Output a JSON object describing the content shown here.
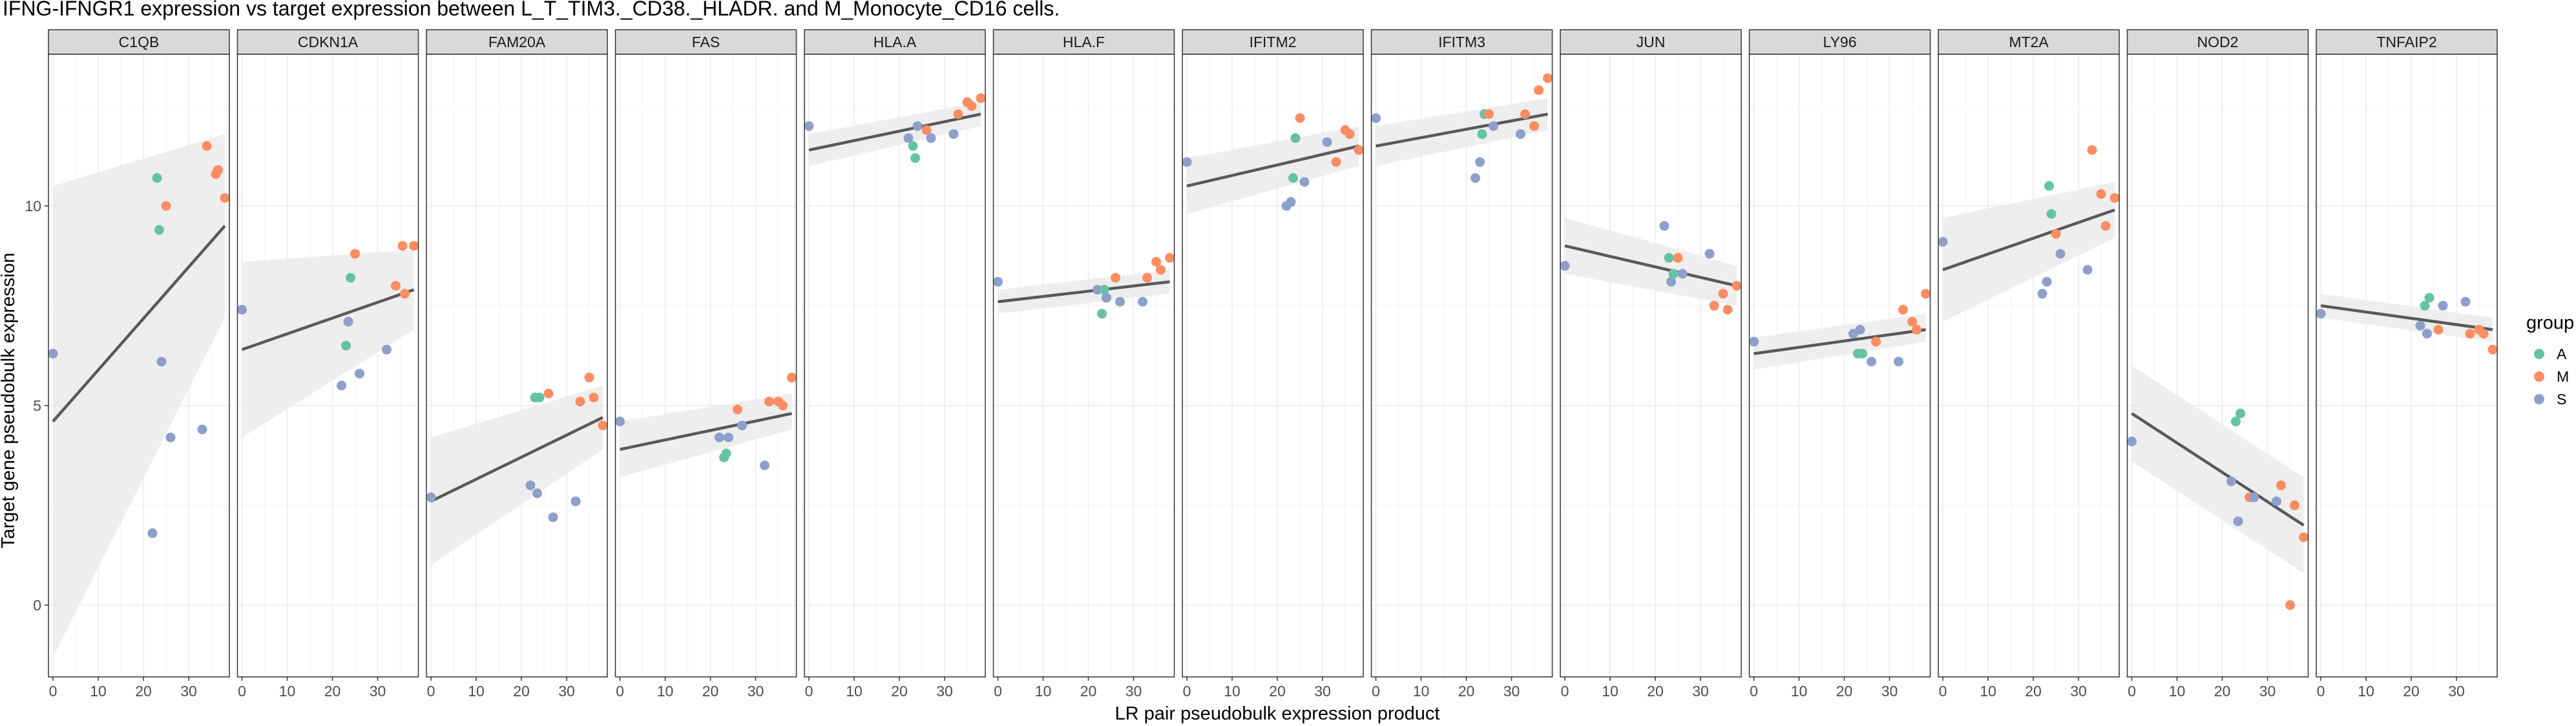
{
  "chart_data": {
    "type": "scatter",
    "title": "IFNG-IFNGR1 expression vs target expression between L_T_TIM3._CD38._HLADR. and M_Monocyte_CD16 cells.",
    "xlabel": "LR pair pseudobulk expression product",
    "ylabel": "Target gene pseudobulk expression",
    "xlim": [
      -1,
      39
    ],
    "ylim": [
      -1.8,
      13.8
    ],
    "x_ticks": [
      0,
      10,
      20,
      30
    ],
    "y_ticks": [
      0,
      5,
      10
    ],
    "grid": true,
    "legend": {
      "title": "group",
      "position": "right",
      "entries": [
        {
          "label": "A",
          "color": "#66c2a5"
        },
        {
          "label": "M",
          "color": "#fc8d62"
        },
        {
          "label": "S",
          "color": "#8da0cb"
        }
      ]
    },
    "fit_line_color": "#595959",
    "ci_band_color": "#ebebeb",
    "panels": [
      {
        "gene": "C1QB",
        "fit": [
          4.6,
          9.5
        ],
        "ci_low": [
          -1.3,
          7.2
        ],
        "ci_high": [
          10.5,
          11.8
        ],
        "points": [
          [
            0,
            6.3,
            "S"
          ],
          [
            22,
            1.8,
            "S"
          ],
          [
            23,
            10.7,
            "A"
          ],
          [
            23.5,
            9.4,
            "A"
          ],
          [
            24,
            6.1,
            "S"
          ],
          [
            25,
            10.0,
            "M"
          ],
          [
            26,
            4.2,
            "S"
          ],
          [
            33,
            4.4,
            "S"
          ],
          [
            34,
            11.5,
            "M"
          ],
          [
            36,
            10.8,
            "M"
          ],
          [
            36.5,
            10.9,
            "M"
          ],
          [
            38,
            10.2,
            "M"
          ]
        ]
      },
      {
        "gene": "CDKN1A",
        "fit": [
          6.4,
          7.9
        ],
        "ci_low": [
          4.2,
          6.9
        ],
        "ci_high": [
          8.6,
          8.9
        ],
        "points": [
          [
            0,
            7.4,
            "S"
          ],
          [
            22,
            5.5,
            "S"
          ],
          [
            23,
            6.5,
            "A"
          ],
          [
            23.5,
            7.1,
            "S"
          ],
          [
            24,
            8.2,
            "A"
          ],
          [
            25,
            8.8,
            "M"
          ],
          [
            26,
            5.8,
            "S"
          ],
          [
            32,
            6.4,
            "S"
          ],
          [
            34,
            8.0,
            "M"
          ],
          [
            35.5,
            9.0,
            "M"
          ],
          [
            36,
            7.8,
            "M"
          ],
          [
            38,
            9.0,
            "M"
          ]
        ]
      },
      {
        "gene": "FAM20A",
        "fit": [
          2.6,
          4.7
        ],
        "ci_low": [
          1.0,
          3.9
        ],
        "ci_high": [
          4.2,
          5.5
        ],
        "points": [
          [
            0,
            2.7,
            "S"
          ],
          [
            22,
            3.0,
            "S"
          ],
          [
            23,
            5.2,
            "A"
          ],
          [
            23.5,
            2.8,
            "S"
          ],
          [
            24,
            5.2,
            "A"
          ],
          [
            26,
            5.3,
            "M"
          ],
          [
            27,
            2.2,
            "S"
          ],
          [
            32,
            2.6,
            "S"
          ],
          [
            33,
            5.1,
            "M"
          ],
          [
            35,
            5.7,
            "M"
          ],
          [
            36,
            5.2,
            "M"
          ],
          [
            38,
            4.5,
            "M"
          ]
        ]
      },
      {
        "gene": "FAS",
        "fit": [
          3.9,
          4.8
        ],
        "ci_low": [
          3.2,
          4.4
        ],
        "ci_high": [
          4.6,
          5.3
        ],
        "points": [
          [
            0,
            4.6,
            "S"
          ],
          [
            22,
            4.2,
            "S"
          ],
          [
            23,
            3.7,
            "A"
          ],
          [
            23.5,
            3.8,
            "A"
          ],
          [
            24,
            4.2,
            "S"
          ],
          [
            26,
            4.9,
            "M"
          ],
          [
            27,
            4.5,
            "S"
          ],
          [
            32,
            3.5,
            "S"
          ],
          [
            33,
            5.1,
            "M"
          ],
          [
            35,
            5.1,
            "M"
          ],
          [
            36,
            5.0,
            "M"
          ],
          [
            38,
            5.7,
            "M"
          ]
        ]
      },
      {
        "gene": "HLA.A",
        "fit": [
          11.4,
          12.3
        ],
        "ci_low": [
          11.0,
          12.0
        ],
        "ci_high": [
          11.8,
          12.6
        ],
        "points": [
          [
            0,
            12.0,
            "S"
          ],
          [
            22,
            11.7,
            "S"
          ],
          [
            23,
            11.5,
            "A"
          ],
          [
            23.5,
            11.2,
            "A"
          ],
          [
            24,
            12.0,
            "S"
          ],
          [
            26,
            11.9,
            "M"
          ],
          [
            27,
            11.7,
            "S"
          ],
          [
            32,
            11.8,
            "S"
          ],
          [
            33,
            12.3,
            "M"
          ],
          [
            35,
            12.6,
            "M"
          ],
          [
            36,
            12.5,
            "M"
          ],
          [
            38,
            12.7,
            "M"
          ]
        ]
      },
      {
        "gene": "HLA.F",
        "fit": [
          7.6,
          8.1
        ],
        "ci_low": [
          7.3,
          7.8
        ],
        "ci_high": [
          7.9,
          8.4
        ],
        "points": [
          [
            0,
            8.1,
            "S"
          ],
          [
            22,
            7.9,
            "S"
          ],
          [
            23,
            7.3,
            "A"
          ],
          [
            23.5,
            7.9,
            "A"
          ],
          [
            24,
            7.7,
            "S"
          ],
          [
            26,
            8.2,
            "M"
          ],
          [
            27,
            7.6,
            "S"
          ],
          [
            32,
            7.6,
            "S"
          ],
          [
            33,
            8.2,
            "M"
          ],
          [
            35,
            8.6,
            "M"
          ],
          [
            36,
            8.4,
            "M"
          ],
          [
            38,
            8.7,
            "M"
          ]
        ]
      },
      {
        "gene": "IFITM2",
        "fit": [
          10.5,
          11.5
        ],
        "ci_low": [
          9.8,
          11.0
        ],
        "ci_high": [
          11.2,
          12.0
        ],
        "points": [
          [
            0,
            11.1,
            "S"
          ],
          [
            22,
            10.0,
            "S"
          ],
          [
            23,
            10.1,
            "S"
          ],
          [
            23.5,
            10.7,
            "A"
          ],
          [
            24,
            11.7,
            "A"
          ],
          [
            25,
            12.2,
            "M"
          ],
          [
            26,
            10.6,
            "S"
          ],
          [
            31,
            11.6,
            "S"
          ],
          [
            33,
            11.1,
            "M"
          ],
          [
            35,
            11.9,
            "M"
          ],
          [
            36,
            11.8,
            "M"
          ],
          [
            38,
            11.4,
            "M"
          ]
        ]
      },
      {
        "gene": "IFITM3",
        "fit": [
          11.5,
          12.3
        ],
        "ci_low": [
          11.0,
          11.9
        ],
        "ci_high": [
          12.0,
          12.7
        ],
        "points": [
          [
            0,
            12.2,
            "S"
          ],
          [
            22,
            10.7,
            "S"
          ],
          [
            23,
            11.1,
            "S"
          ],
          [
            23.5,
            11.8,
            "A"
          ],
          [
            24,
            12.3,
            "A"
          ],
          [
            25,
            12.3,
            "M"
          ],
          [
            26,
            12.0,
            "S"
          ],
          [
            32,
            11.8,
            "S"
          ],
          [
            33,
            12.3,
            "M"
          ],
          [
            35,
            12.0,
            "M"
          ],
          [
            36,
            12.9,
            "M"
          ],
          [
            38,
            13.2,
            "M"
          ]
        ]
      },
      {
        "gene": "JUN",
        "fit": [
          9.0,
          8.0
        ],
        "ci_low": [
          8.3,
          7.5
        ],
        "ci_high": [
          9.7,
          8.5
        ],
        "points": [
          [
            0,
            8.5,
            "S"
          ],
          [
            22,
            9.5,
            "S"
          ],
          [
            23,
            8.7,
            "A"
          ],
          [
            23.5,
            8.1,
            "S"
          ],
          [
            24,
            8.3,
            "A"
          ],
          [
            25,
            8.7,
            "M"
          ],
          [
            26,
            8.3,
            "S"
          ],
          [
            32,
            8.8,
            "S"
          ],
          [
            33,
            7.5,
            "M"
          ],
          [
            35,
            7.8,
            "M"
          ],
          [
            36,
            7.4,
            "M"
          ],
          [
            38,
            8.0,
            "M"
          ]
        ]
      },
      {
        "gene": "LY96",
        "fit": [
          6.3,
          6.9
        ],
        "ci_low": [
          5.9,
          6.6
        ],
        "ci_high": [
          6.7,
          7.3
        ],
        "points": [
          [
            0,
            6.6,
            "S"
          ],
          [
            22,
            6.8,
            "S"
          ],
          [
            23,
            6.3,
            "A"
          ],
          [
            23.5,
            6.9,
            "S"
          ],
          [
            24,
            6.3,
            "A"
          ],
          [
            26,
            6.1,
            "S"
          ],
          [
            27,
            6.6,
            "M"
          ],
          [
            32,
            6.1,
            "S"
          ],
          [
            33,
            7.4,
            "M"
          ],
          [
            35,
            7.1,
            "M"
          ],
          [
            36,
            6.9,
            "M"
          ],
          [
            38,
            7.8,
            "M"
          ]
        ]
      },
      {
        "gene": "MT2A",
        "fit": [
          8.4,
          9.9
        ],
        "ci_low": [
          7.1,
          9.2
        ],
        "ci_high": [
          9.7,
          10.6
        ],
        "points": [
          [
            0,
            9.1,
            "S"
          ],
          [
            22,
            7.8,
            "S"
          ],
          [
            23,
            8.1,
            "S"
          ],
          [
            23.5,
            10.5,
            "A"
          ],
          [
            24,
            9.8,
            "A"
          ],
          [
            25,
            9.3,
            "M"
          ],
          [
            26,
            8.8,
            "S"
          ],
          [
            32,
            8.4,
            "S"
          ],
          [
            33,
            11.4,
            "M"
          ],
          [
            35,
            10.3,
            "M"
          ],
          [
            36,
            9.5,
            "M"
          ],
          [
            38,
            10.2,
            "M"
          ]
        ]
      },
      {
        "gene": "NOD2",
        "fit": [
          4.8,
          2.0
        ],
        "ci_low": [
          3.6,
          0.8
        ],
        "ci_high": [
          6.0,
          3.2
        ],
        "points": [
          [
            0,
            4.1,
            "S"
          ],
          [
            22,
            3.1,
            "S"
          ],
          [
            23,
            4.6,
            "A"
          ],
          [
            23.5,
            2.1,
            "S"
          ],
          [
            24,
            4.8,
            "A"
          ],
          [
            26,
            2.7,
            "M"
          ],
          [
            27,
            2.7,
            "S"
          ],
          [
            32,
            2.6,
            "S"
          ],
          [
            33,
            3.0,
            "M"
          ],
          [
            35,
            0.0,
            "M"
          ],
          [
            36,
            2.5,
            "M"
          ],
          [
            38,
            1.7,
            "M"
          ]
        ]
      },
      {
        "gene": "TNFAIP2",
        "fit": [
          7.5,
          6.9
        ],
        "ci_low": [
          7.2,
          6.6
        ],
        "ci_high": [
          7.8,
          7.2
        ],
        "points": [
          [
            0,
            7.3,
            "S"
          ],
          [
            22,
            7.0,
            "S"
          ],
          [
            23,
            7.5,
            "A"
          ],
          [
            23.5,
            6.8,
            "S"
          ],
          [
            24,
            7.7,
            "A"
          ],
          [
            26,
            6.9,
            "M"
          ],
          [
            27,
            7.5,
            "S"
          ],
          [
            32,
            7.6,
            "S"
          ],
          [
            33,
            6.8,
            "M"
          ],
          [
            35,
            6.9,
            "M"
          ],
          [
            36,
            6.8,
            "M"
          ],
          [
            38,
            6.4,
            "M"
          ]
        ]
      }
    ]
  }
}
